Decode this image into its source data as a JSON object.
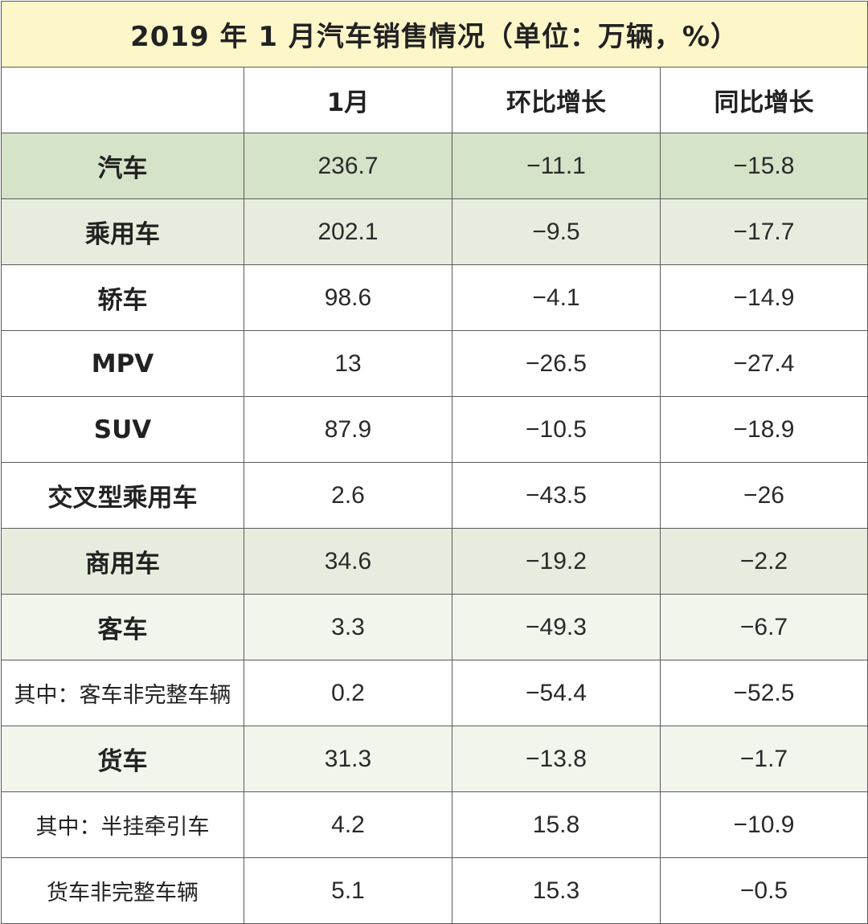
{
  "table": {
    "title": "2019 年 1 月汽车销售情况（单位：万辆，%）",
    "header": [
      "",
      "1月",
      "环比增长",
      "同比增长"
    ],
    "rows": [
      {
        "label": "汽车",
        "month": "236.7",
        "mom": "−11.1",
        "yoy": "−15.8",
        "style": "bold",
        "bg": "#d5e3c8"
      },
      {
        "label": "乘用车",
        "month": "202.1",
        "mom": "−9.5",
        "yoy": "−17.7",
        "style": "bold",
        "bg": "#e7edde"
      },
      {
        "label": "轿车",
        "month": "98.6",
        "mom": "−4.1",
        "yoy": "−14.9",
        "style": "bold",
        "bg": "#ffffff"
      },
      {
        "label": "MPV",
        "month": "13",
        "mom": "−26.5",
        "yoy": "−27.4",
        "style": "bold",
        "bg": "#ffffff"
      },
      {
        "label": "SUV",
        "month": "87.9",
        "mom": "−10.5",
        "yoy": "−18.9",
        "style": "bold",
        "bg": "#ffffff"
      },
      {
        "label": "交叉型乘用车",
        "month": "2.6",
        "mom": "−43.5",
        "yoy": "−26",
        "style": "bold",
        "bg": "#ffffff"
      },
      {
        "label": "商用车",
        "month": "34.6",
        "mom": "−19.2",
        "yoy": "−2.2",
        "style": "bold",
        "bg": "#e7edde"
      },
      {
        "label": "客车",
        "month": "3.3",
        "mom": "−49.3",
        "yoy": "−6.7",
        "style": "bold",
        "bg": "#f1f5ec"
      },
      {
        "label": "其中：客车非完整车辆",
        "month": "0.2",
        "mom": "−54.4",
        "yoy": "−52.5",
        "style": "normal",
        "bg": "#ffffff"
      },
      {
        "label": "货车",
        "month": "31.3",
        "mom": "−13.8",
        "yoy": "−1.7",
        "style": "bold",
        "bg": "#f1f5ec"
      },
      {
        "label": "其中：半挂牵引车",
        "month": "4.2",
        "mom": "15.8",
        "yoy": "−10.9",
        "style": "normal",
        "bg": "#ffffff"
      },
      {
        "label": "货车非完整车辆",
        "month": "5.1",
        "mom": "15.3",
        "yoy": "−0.5",
        "style": "normal",
        "bg": "#ffffff"
      }
    ]
  },
  "colors": {
    "title_bg": "#fdf6c9",
    "border": "#5a5a5a",
    "total_bg": "#d5e3c8",
    "group_bg": "#e7edde",
    "sub_bg": "#f1f5ec"
  }
}
